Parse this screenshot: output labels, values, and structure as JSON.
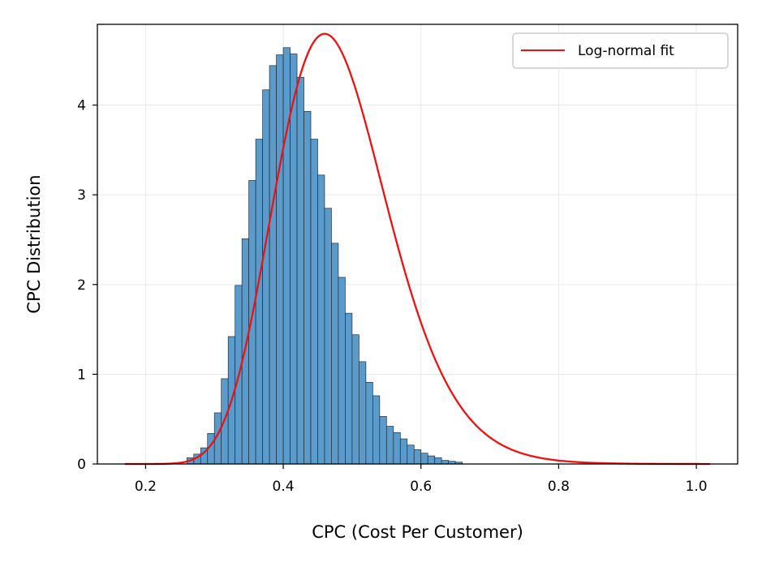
{
  "chart_data": {
    "type": "bar",
    "subtype": "histogram-with-fit",
    "title": "",
    "xlabel": "CPC (Cost Per Customer)",
    "ylabel": "CPC Distribution",
    "xlim": [
      0.13,
      1.06
    ],
    "ylim": [
      0,
      4.9
    ],
    "xticks": [
      0.2,
      0.4,
      0.6,
      0.8,
      1.0
    ],
    "xtick_labels": [
      "0.2",
      "0.4",
      "0.6",
      "0.8",
      "1.0"
    ],
    "yticks": [
      0,
      1,
      2,
      3,
      4
    ],
    "ytick_labels": [
      "0",
      "1",
      "2",
      "3",
      "4"
    ],
    "grid": true,
    "legend": {
      "position": "top-right",
      "entries": [
        "Log-normal fit"
      ]
    },
    "histogram": {
      "name": "",
      "bin_start": 0.26,
      "bin_width": 0.01,
      "values": [
        0.07,
        0.11,
        0.18,
        0.34,
        0.57,
        0.95,
        1.42,
        1.99,
        2.51,
        3.16,
        3.62,
        4.17,
        4.44,
        4.56,
        4.64,
        4.57,
        4.31,
        3.93,
        3.62,
        3.22,
        2.85,
        2.46,
        2.08,
        1.68,
        1.44,
        1.14,
        0.91,
        0.76,
        0.53,
        0.42,
        0.35,
        0.28,
        0.21,
        0.16,
        0.12,
        0.09,
        0.07,
        0.04,
        0.03,
        0.02
      ],
      "color": "#5b9bcb",
      "edge_color": "#1f2d3a"
    },
    "fit": {
      "name": "Log-normal fit",
      "distribution": "lognormal",
      "mu": -0.7447,
      "sigma": 0.178,
      "x_range": [
        0.17,
        1.02
      ],
      "color": "#ee1111"
    }
  }
}
